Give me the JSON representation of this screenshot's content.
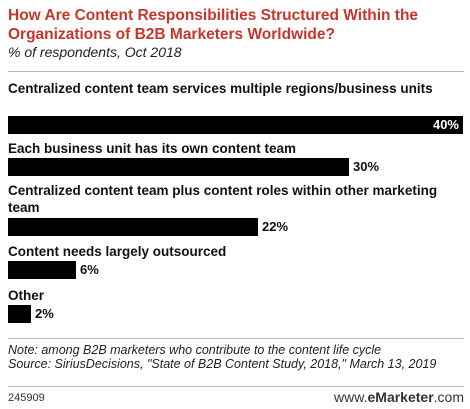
{
  "header": {
    "title": "How Are Content Responsibilities Structured Within the Organizations of B2B Marketers Worldwide?",
    "subtitle": "% of respondents, Oct 2018"
  },
  "chart_data": {
    "type": "bar",
    "orientation": "horizontal",
    "categories": [
      "Centralized content team services multiple regions/business units",
      "Each business unit has its own content team",
      "Centralized content team plus content roles within other marketing team",
      "Content needs largely outsourced",
      "Other"
    ],
    "values": [
      40,
      30,
      22,
      6,
      2
    ],
    "value_labels": [
      "40%",
      "30%",
      "22%",
      "6%",
      "2%"
    ],
    "bar_color": "#000000",
    "xlim": [
      0,
      40
    ],
    "grid": false
  },
  "footer": {
    "note": "Note: among B2B marketers who contribute to the content life cycle",
    "source": "Source: SiriusDecisions, \"State of B2B Content Study, 2018,\" March 13, 2019",
    "chart_id": "245909",
    "site_prefix": "www.",
    "site_brand": "eMarketer",
    "site_suffix": ".com"
  },
  "colors": {
    "title": "#c8352b",
    "bar": "#000000",
    "rule": "#b8b8b8"
  }
}
